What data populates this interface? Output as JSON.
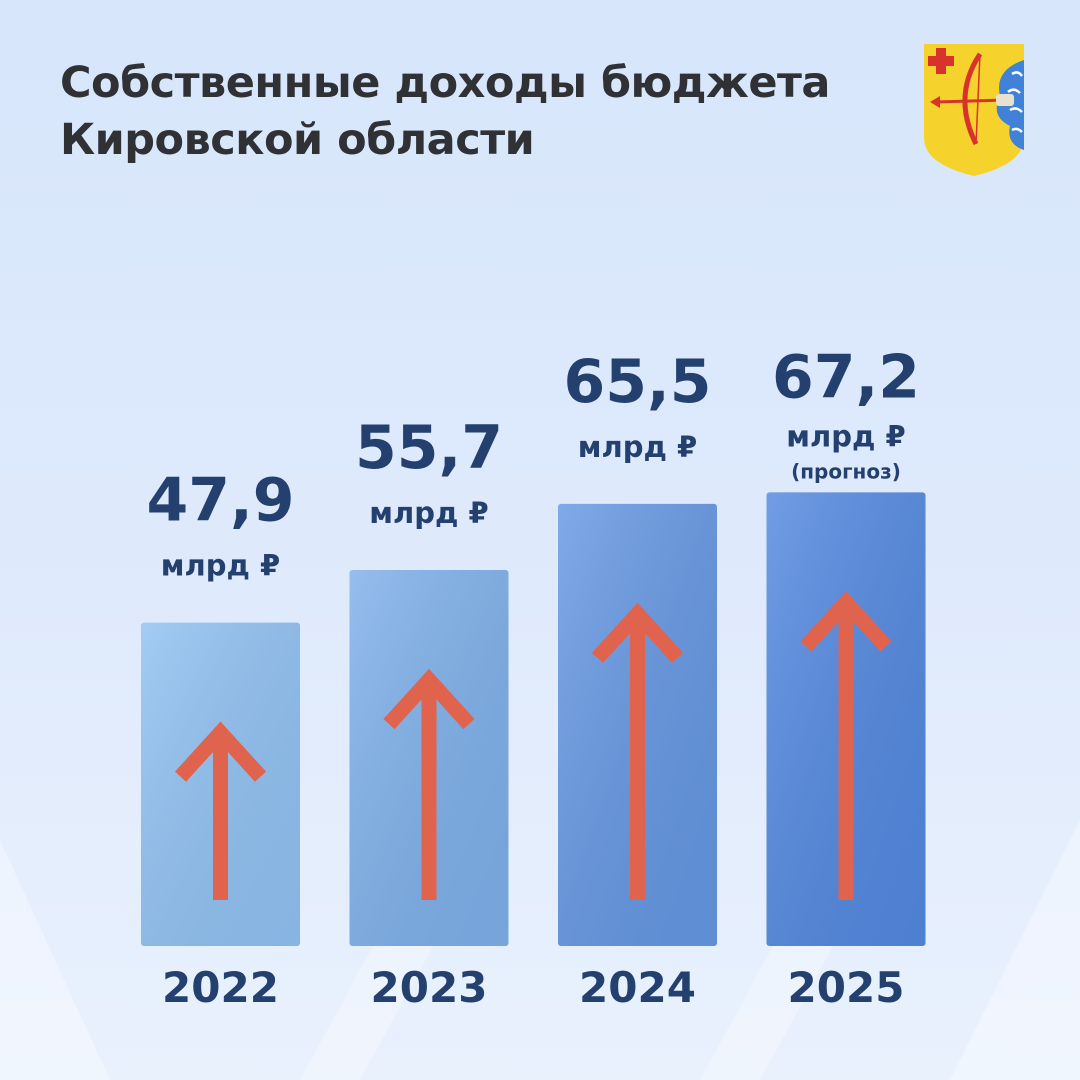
{
  "title": {
    "line1": "Собственные доходы бюджета",
    "line2": "Кировской области"
  },
  "emblem": {
    "icon": "kirov-region-coat-of-arms-icon"
  },
  "chart_data": {
    "type": "bar",
    "title": "Собственные доходы бюджета Кировской области",
    "categories": [
      "2022",
      "2023",
      "2024",
      "2025"
    ],
    "values": [
      47.9,
      55.7,
      65.5,
      67.2
    ],
    "value_labels": [
      "47,9",
      "55,7",
      "65,5",
      "67,2"
    ],
    "unit": "млрд ₽",
    "notes": [
      "",
      "",
      "",
      "(прогноз)"
    ],
    "ylim": [
      0,
      80
    ],
    "grid": false,
    "legend": "none",
    "colors": {
      "bars": [
        "#90c1f2",
        "#7eb0ea",
        "#6597e3",
        "#5388e0"
      ],
      "arrow": "#e0634e",
      "text": "#23406e"
    }
  }
}
